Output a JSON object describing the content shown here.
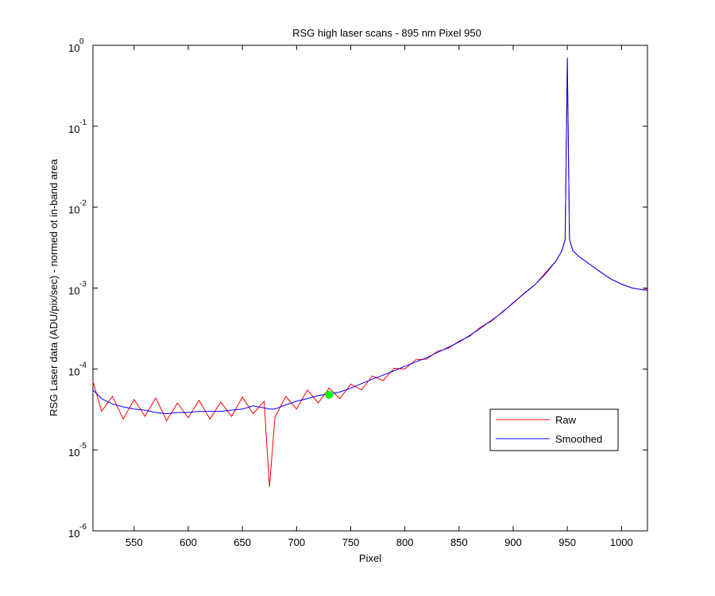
{
  "chart_data": {
    "type": "line",
    "title": "RSG high laser scans  - 895 nm    Pixel 950",
    "xlabel": "Pixel",
    "ylabel": "RSG Laser data (ADU/pix/sec) - normed ot in-band area",
    "log_y": true,
    "legend": "lower right",
    "x": [
      512,
      520,
      530,
      540,
      550,
      560,
      570,
      580,
      590,
      600,
      610,
      620,
      630,
      640,
      650,
      660,
      670,
      675,
      680,
      690,
      700,
      710,
      720,
      730,
      740,
      750,
      760,
      770,
      780,
      790,
      800,
      810,
      820,
      830,
      840,
      850,
      860,
      870,
      880,
      890,
      900,
      910,
      920,
      930,
      940,
      945,
      948,
      950,
      952,
      955,
      960,
      970,
      980,
      990,
      1000,
      1010,
      1020,
      1024
    ],
    "series": [
      {
        "name": "Raw",
        "color": "#ff0000",
        "values": [
          7e-05,
          3e-05,
          4.6e-05,
          2.4e-05,
          4.2e-05,
          2.6e-05,
          4.4e-05,
          2.3e-05,
          3.8e-05,
          2.5e-05,
          4.1e-05,
          2.4e-05,
          3.9e-05,
          2.6e-05,
          4.5e-05,
          2.8e-05,
          4e-05,
          3.5e-06,
          2.5e-05,
          4.6e-05,
          3.2e-05,
          5.5e-05,
          3.8e-05,
          5.8e-05,
          4.3e-05,
          6.5e-05,
          5.5e-05,
          8.2e-05,
          7.2e-05,
          0.000102,
          0.0001,
          0.00013,
          0.000132,
          0.000165,
          0.00018,
          0.00022,
          0.000255,
          0.00033,
          0.00039,
          0.00051,
          0.00065,
          0.00086,
          0.0011,
          0.00155,
          0.0022,
          0.0029,
          0.004,
          0.7,
          0.004,
          0.0029,
          0.0025,
          0.002,
          0.0016,
          0.0013,
          0.00112,
          0.001,
          0.00095,
          0.00098
        ]
      },
      {
        "name": "Smoothed",
        "color": "#0000ff",
        "values": [
          5.5e-05,
          4.3e-05,
          3.7e-05,
          3.4e-05,
          3.2e-05,
          3.1e-05,
          2.9e-05,
          2.8e-05,
          2.9e-05,
          2.9e-05,
          3e-05,
          3e-05,
          3e-05,
          3.1e-05,
          3.2e-05,
          3.5e-05,
          3.3e-05,
          3.2e-05,
          3.2e-05,
          3.6e-05,
          4e-05,
          4.3e-05,
          4.7e-05,
          4.9e-05,
          5.2e-05,
          5.8e-05,
          6.6e-05,
          7.5e-05,
          8.4e-05,
          9.5e-05,
          0.000108,
          0.000122,
          0.000138,
          0.00016,
          0.000185,
          0.000215,
          0.00026,
          0.00032,
          0.0004,
          0.0005,
          0.00066,
          0.00085,
          0.0011,
          0.0015,
          0.0022,
          0.0029,
          0.004,
          0.7,
          0.004,
          0.0029,
          0.0025,
          0.002,
          0.0016,
          0.0013,
          0.00112,
          0.001,
          0.00095,
          0.00094
        ]
      }
    ],
    "marker": {
      "x": 730,
      "y": 4.8e-05,
      "color": "#00ff00"
    },
    "xlim": [
      512,
      1024
    ],
    "xticks": [
      550,
      600,
      650,
      700,
      750,
      800,
      850,
      900,
      950,
      1000
    ],
    "ylim": [
      1e-06,
      1
    ],
    "yticks": [
      {
        "value": 1e-06,
        "label": "10",
        "exponent": "-6"
      },
      {
        "value": 1e-05,
        "label": "10",
        "exponent": "-5"
      },
      {
        "value": 0.0001,
        "label": "10",
        "exponent": "-4"
      },
      {
        "value": 0.001,
        "label": "10",
        "exponent": "-3"
      },
      {
        "value": 0.01,
        "label": "10",
        "exponent": "-2"
      },
      {
        "value": 0.1,
        "label": "10",
        "exponent": "-1"
      },
      {
        "value": 1,
        "label": "10",
        "exponent": "0"
      }
    ]
  }
}
